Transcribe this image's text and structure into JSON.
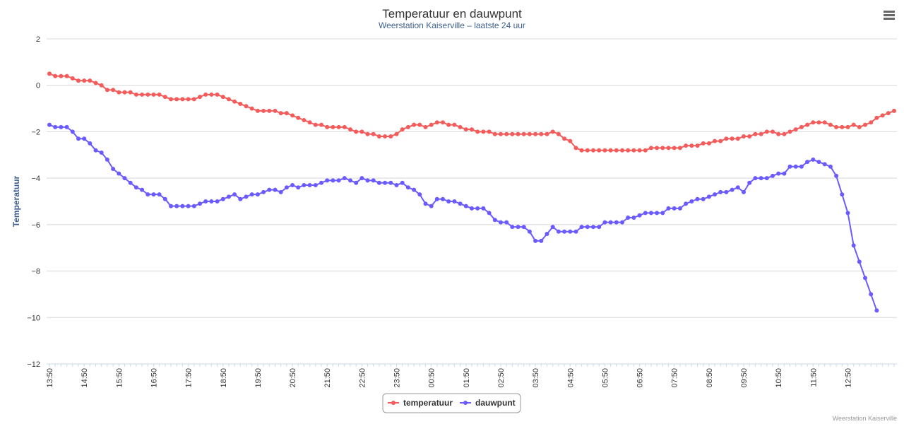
{
  "chart_data": {
    "type": "line",
    "title": "Temperatuur en dauwpunt",
    "subtitle": "Weerstation Kaiserville – laatste 24 uur",
    "ylabel": "Temperatuur",
    "xlabel": "",
    "ylim": [
      -12,
      2
    ],
    "yticks": [
      2,
      0,
      -2,
      -4,
      -6,
      -8,
      -10,
      -12
    ],
    "xtick_labels": [
      "13:50",
      "14:50",
      "15:50",
      "16:50",
      "17:50",
      "18:50",
      "19:50",
      "20:50",
      "21:50",
      "22:50",
      "23:50",
      "00:50",
      "01:50",
      "02:50",
      "03:50",
      "04:50",
      "05:50",
      "06:50",
      "07:50",
      "08:50",
      "09:50",
      "10:50",
      "11:50",
      "12:50"
    ],
    "x_interval_minutes": 10,
    "grid": true,
    "legend_position": "bottom-center",
    "series": [
      {
        "name": "temperatuur",
        "color": "#f45b5b",
        "values": [
          0.5,
          0.4,
          0.4,
          0.4,
          0.3,
          0.2,
          0.2,
          0.2,
          0.1,
          0.0,
          -0.2,
          -0.2,
          -0.3,
          -0.3,
          -0.3,
          -0.4,
          -0.4,
          -0.4,
          -0.4,
          -0.4,
          -0.5,
          -0.6,
          -0.6,
          -0.6,
          -0.6,
          -0.6,
          -0.5,
          -0.4,
          -0.4,
          -0.4,
          -0.5,
          -0.6,
          -0.7,
          -0.8,
          -0.9,
          -1.0,
          -1.1,
          -1.1,
          -1.1,
          -1.1,
          -1.2,
          -1.2,
          -1.3,
          -1.4,
          -1.5,
          -1.6,
          -1.7,
          -1.7,
          -1.8,
          -1.8,
          -1.8,
          -1.8,
          -1.9,
          -2.0,
          -2.0,
          -2.1,
          -2.1,
          -2.2,
          -2.2,
          -2.2,
          -2.1,
          -1.9,
          -1.8,
          -1.7,
          -1.7,
          -1.8,
          -1.7,
          -1.6,
          -1.6,
          -1.7,
          -1.7,
          -1.8,
          -1.9,
          -1.9,
          -2.0,
          -2.0,
          -2.0,
          -2.1,
          -2.1,
          -2.1,
          -2.1,
          -2.1,
          -2.1,
          -2.1,
          -2.1,
          -2.1,
          -2.1,
          -2.0,
          -2.1,
          -2.3,
          -2.4,
          -2.7,
          -2.8,
          -2.8,
          -2.8,
          -2.8,
          -2.8,
          -2.8,
          -2.8,
          -2.8,
          -2.8,
          -2.8,
          -2.8,
          -2.8,
          -2.7,
          -2.7,
          -2.7,
          -2.7,
          -2.7,
          -2.7,
          -2.6,
          -2.6,
          -2.6,
          -2.5,
          -2.5,
          -2.4,
          -2.4,
          -2.3,
          -2.3,
          -2.3,
          -2.2,
          -2.2,
          -2.1,
          -2.1,
          -2.0,
          -2.0,
          -2.1,
          -2.1,
          -2.0,
          -1.9,
          -1.8,
          -1.7,
          -1.6,
          -1.6,
          -1.6,
          -1.7,
          -1.8,
          -1.8,
          -1.8,
          -1.7,
          -1.8,
          -1.7,
          -1.6,
          -1.4,
          -1.3,
          -1.2,
          -1.1
        ]
      },
      {
        "name": "dauwpunt",
        "color": "#6b5bff",
        "values": [
          -1.7,
          -1.8,
          -1.8,
          -1.8,
          -2.0,
          -2.3,
          -2.3,
          -2.5,
          -2.8,
          -2.9,
          -3.2,
          -3.6,
          -3.8,
          -4.0,
          -4.2,
          -4.4,
          -4.5,
          -4.7,
          -4.7,
          -4.7,
          -4.9,
          -5.2,
          -5.2,
          -5.2,
          -5.2,
          -5.2,
          -5.1,
          -5.0,
          -5.0,
          -5.0,
          -4.9,
          -4.8,
          -4.7,
          -4.9,
          -4.8,
          -4.7,
          -4.7,
          -4.6,
          -4.5,
          -4.5,
          -4.6,
          -4.4,
          -4.3,
          -4.4,
          -4.3,
          -4.3,
          -4.3,
          -4.2,
          -4.1,
          -4.1,
          -4.1,
          -4.0,
          -4.1,
          -4.2,
          -4.0,
          -4.1,
          -4.1,
          -4.2,
          -4.2,
          -4.2,
          -4.3,
          -4.2,
          -4.4,
          -4.5,
          -4.7,
          -5.1,
          -5.2,
          -4.9,
          -4.9,
          -5.0,
          -5.0,
          -5.1,
          -5.2,
          -5.3,
          -5.3,
          -5.3,
          -5.5,
          -5.8,
          -5.9,
          -5.9,
          -6.1,
          -6.1,
          -6.1,
          -6.3,
          -6.7,
          -6.7,
          -6.4,
          -6.1,
          -6.3,
          -6.3,
          -6.3,
          -6.3,
          -6.1,
          -6.1,
          -6.1,
          -6.1,
          -5.9,
          -5.9,
          -5.9,
          -5.9,
          -5.7,
          -5.7,
          -5.6,
          -5.5,
          -5.5,
          -5.5,
          -5.5,
          -5.3,
          -5.3,
          -5.3,
          -5.1,
          -5.0,
          -4.9,
          -4.9,
          -4.8,
          -4.7,
          -4.6,
          -4.6,
          -4.5,
          -4.4,
          -4.6,
          -4.2,
          -4.0,
          -4.0,
          -4.0,
          -3.9,
          -3.8,
          -3.8,
          -3.5,
          -3.5,
          -3.5,
          -3.3,
          -3.2,
          -3.3,
          -3.4,
          -3.5,
          -3.9,
          -4.7,
          -5.5,
          -6.9,
          -7.6,
          -8.3,
          -9.0,
          -9.7
        ]
      }
    ]
  },
  "menu": {
    "icon": "hamburger-menu-icon"
  },
  "credits": {
    "text": "Weerstation Kaiserville"
  }
}
